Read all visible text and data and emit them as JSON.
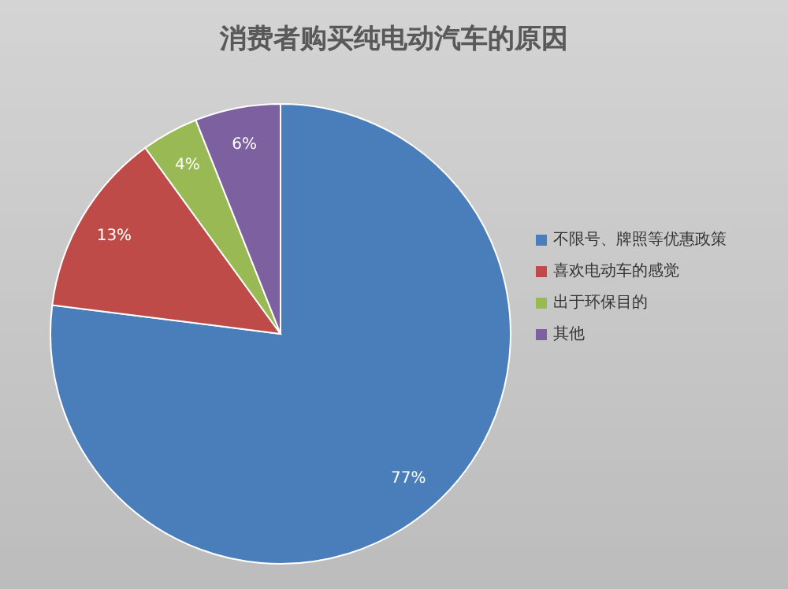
{
  "chart_data": {
    "type": "pie",
    "title": "消费者购买纯电动汽车的原因",
    "categories": [
      "不限号、牌照等优惠政策",
      "喜欢电动车的感觉",
      "出于环保目的",
      "其他"
    ],
    "values": [
      77,
      13,
      4,
      6
    ],
    "value_labels": [
      "77%",
      "13%",
      "4%",
      "6%"
    ],
    "colors": [
      "#4a7ebb",
      "#be4b48",
      "#98b954",
      "#7d60a0"
    ],
    "legend": "right"
  }
}
